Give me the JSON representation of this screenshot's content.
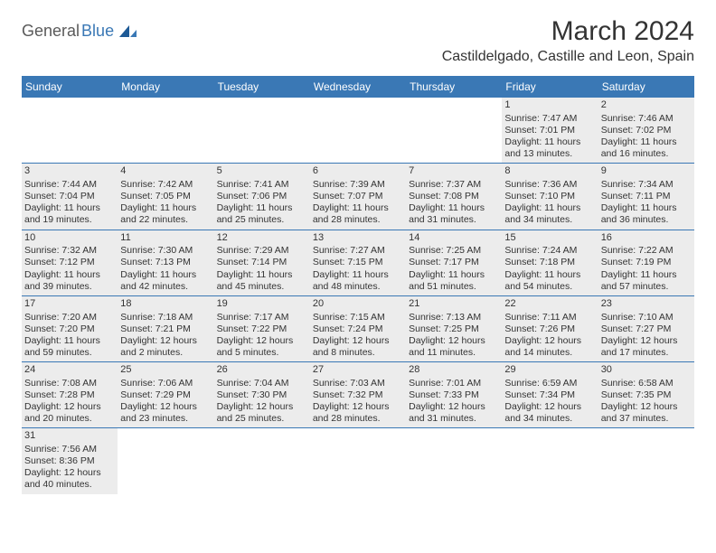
{
  "logo": {
    "part1": "General",
    "part2": "Blue"
  },
  "title": "March 2024",
  "location": "Castildelgado, Castille and Leon, Spain",
  "colors": {
    "header_bg": "#3a78b5",
    "header_text": "#ffffff",
    "cell_bg": "#ececec",
    "text": "#333333",
    "rule": "#3a78b5"
  },
  "day_names": [
    "Sunday",
    "Monday",
    "Tuesday",
    "Wednesday",
    "Thursday",
    "Friday",
    "Saturday"
  ],
  "weeks": [
    [
      null,
      null,
      null,
      null,
      null,
      {
        "n": "1",
        "sr": "7:47 AM",
        "ss": "7:01 PM",
        "dl": "11 hours and 13 minutes."
      },
      {
        "n": "2",
        "sr": "7:46 AM",
        "ss": "7:02 PM",
        "dl": "11 hours and 16 minutes."
      }
    ],
    [
      {
        "n": "3",
        "sr": "7:44 AM",
        "ss": "7:04 PM",
        "dl": "11 hours and 19 minutes."
      },
      {
        "n": "4",
        "sr": "7:42 AM",
        "ss": "7:05 PM",
        "dl": "11 hours and 22 minutes."
      },
      {
        "n": "5",
        "sr": "7:41 AM",
        "ss": "7:06 PM",
        "dl": "11 hours and 25 minutes."
      },
      {
        "n": "6",
        "sr": "7:39 AM",
        "ss": "7:07 PM",
        "dl": "11 hours and 28 minutes."
      },
      {
        "n": "7",
        "sr": "7:37 AM",
        "ss": "7:08 PM",
        "dl": "11 hours and 31 minutes."
      },
      {
        "n": "8",
        "sr": "7:36 AM",
        "ss": "7:10 PM",
        "dl": "11 hours and 34 minutes."
      },
      {
        "n": "9",
        "sr": "7:34 AM",
        "ss": "7:11 PM",
        "dl": "11 hours and 36 minutes."
      }
    ],
    [
      {
        "n": "10",
        "sr": "7:32 AM",
        "ss": "7:12 PM",
        "dl": "11 hours and 39 minutes."
      },
      {
        "n": "11",
        "sr": "7:30 AM",
        "ss": "7:13 PM",
        "dl": "11 hours and 42 minutes."
      },
      {
        "n": "12",
        "sr": "7:29 AM",
        "ss": "7:14 PM",
        "dl": "11 hours and 45 minutes."
      },
      {
        "n": "13",
        "sr": "7:27 AM",
        "ss": "7:15 PM",
        "dl": "11 hours and 48 minutes."
      },
      {
        "n": "14",
        "sr": "7:25 AM",
        "ss": "7:17 PM",
        "dl": "11 hours and 51 minutes."
      },
      {
        "n": "15",
        "sr": "7:24 AM",
        "ss": "7:18 PM",
        "dl": "11 hours and 54 minutes."
      },
      {
        "n": "16",
        "sr": "7:22 AM",
        "ss": "7:19 PM",
        "dl": "11 hours and 57 minutes."
      }
    ],
    [
      {
        "n": "17",
        "sr": "7:20 AM",
        "ss": "7:20 PM",
        "dl": "11 hours and 59 minutes."
      },
      {
        "n": "18",
        "sr": "7:18 AM",
        "ss": "7:21 PM",
        "dl": "12 hours and 2 minutes."
      },
      {
        "n": "19",
        "sr": "7:17 AM",
        "ss": "7:22 PM",
        "dl": "12 hours and 5 minutes."
      },
      {
        "n": "20",
        "sr": "7:15 AM",
        "ss": "7:24 PM",
        "dl": "12 hours and 8 minutes."
      },
      {
        "n": "21",
        "sr": "7:13 AM",
        "ss": "7:25 PM",
        "dl": "12 hours and 11 minutes."
      },
      {
        "n": "22",
        "sr": "7:11 AM",
        "ss": "7:26 PM",
        "dl": "12 hours and 14 minutes."
      },
      {
        "n": "23",
        "sr": "7:10 AM",
        "ss": "7:27 PM",
        "dl": "12 hours and 17 minutes."
      }
    ],
    [
      {
        "n": "24",
        "sr": "7:08 AM",
        "ss": "7:28 PM",
        "dl": "12 hours and 20 minutes."
      },
      {
        "n": "25",
        "sr": "7:06 AM",
        "ss": "7:29 PM",
        "dl": "12 hours and 23 minutes."
      },
      {
        "n": "26",
        "sr": "7:04 AM",
        "ss": "7:30 PM",
        "dl": "12 hours and 25 minutes."
      },
      {
        "n": "27",
        "sr": "7:03 AM",
        "ss": "7:32 PM",
        "dl": "12 hours and 28 minutes."
      },
      {
        "n": "28",
        "sr": "7:01 AM",
        "ss": "7:33 PM",
        "dl": "12 hours and 31 minutes."
      },
      {
        "n": "29",
        "sr": "6:59 AM",
        "ss": "7:34 PM",
        "dl": "12 hours and 34 minutes."
      },
      {
        "n": "30",
        "sr": "6:58 AM",
        "ss": "7:35 PM",
        "dl": "12 hours and 37 minutes."
      }
    ],
    [
      {
        "n": "31",
        "sr": "7:56 AM",
        "ss": "8:36 PM",
        "dl": "12 hours and 40 minutes."
      },
      null,
      null,
      null,
      null,
      null,
      null
    ]
  ]
}
